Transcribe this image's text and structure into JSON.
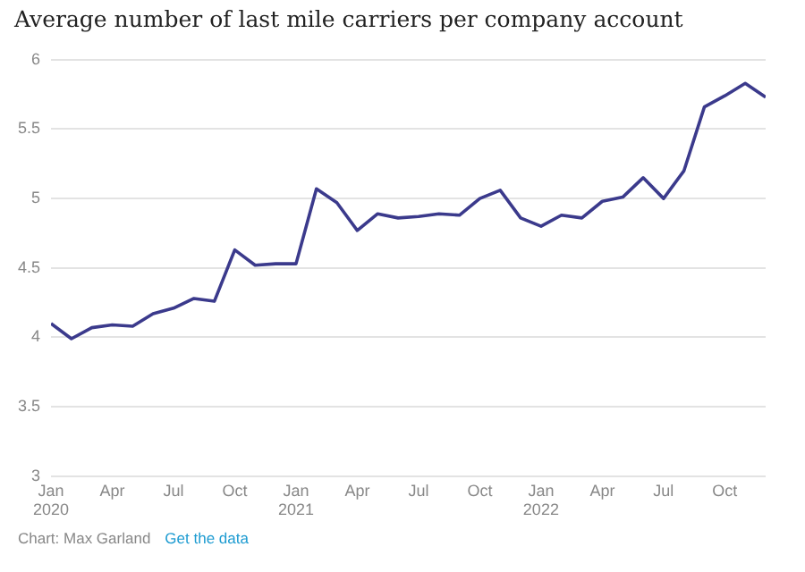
{
  "chart_data": {
    "type": "line",
    "title": "Average number of last mile carriers per company account",
    "x": [
      "2020-01",
      "2020-02",
      "2020-03",
      "2020-04",
      "2020-05",
      "2020-06",
      "2020-07",
      "2020-08",
      "2020-09",
      "2020-10",
      "2020-11",
      "2020-12",
      "2021-01",
      "2021-02",
      "2021-03",
      "2021-04",
      "2021-05",
      "2021-06",
      "2021-07",
      "2021-08",
      "2021-09",
      "2021-10",
      "2021-11",
      "2021-12",
      "2022-01",
      "2022-02",
      "2022-03",
      "2022-04",
      "2022-05",
      "2022-06",
      "2022-07",
      "2022-08",
      "2022-09",
      "2022-10",
      "2022-11",
      "2022-12"
    ],
    "series": [
      {
        "color": "#3b3a8c",
        "values": [
          4.1,
          3.99,
          4.07,
          4.09,
          4.08,
          4.17,
          4.21,
          4.28,
          4.26,
          4.63,
          4.52,
          4.53,
          4.53,
          5.07,
          4.97,
          4.77,
          4.89,
          4.86,
          4.87,
          4.89,
          4.88,
          5.0,
          5.06,
          4.86,
          4.8,
          4.88,
          4.86,
          4.98,
          5.01,
          5.15,
          5.0,
          5.2,
          5.66,
          5.74,
          5.83,
          5.73
        ]
      }
    ],
    "ylim": [
      3,
      6
    ],
    "yticks": [
      3,
      3.5,
      4,
      4.5,
      5,
      5.5,
      6
    ],
    "xlim": [
      "2020-01",
      "2022-12"
    ],
    "xticks": [
      {
        "value": "2020-01",
        "label": "Jan 2020"
      },
      {
        "value": "2020-04",
        "label": "Apr"
      },
      {
        "value": "2020-07",
        "label": "Jul"
      },
      {
        "value": "2020-10",
        "label": "Oct"
      },
      {
        "value": "2021-01",
        "label": "Jan 2021"
      },
      {
        "value": "2021-04",
        "label": "Apr"
      },
      {
        "value": "2021-07",
        "label": "Jul"
      },
      {
        "value": "2021-10",
        "label": "Oct"
      },
      {
        "value": "2022-01",
        "label": "Jan 2022"
      },
      {
        "value": "2022-04",
        "label": "Apr"
      },
      {
        "value": "2022-07",
        "label": "Jul"
      },
      {
        "value": "2022-10",
        "label": "Oct"
      }
    ],
    "grid": "y",
    "line_style": "solid",
    "annotations": [
      "Chart: Max Garland",
      "Get the data"
    ]
  }
}
